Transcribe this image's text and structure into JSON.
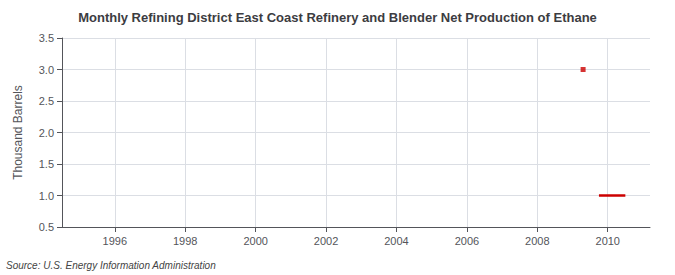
{
  "chart_data": {
    "type": "line",
    "title": "Monthly Refining District East Coast Refinery and Blender Net Production of Ethane",
    "ylabel": "Thousand Barrels",
    "annotation": "Source: U.S. Energy Information Administration",
    "xlim": [
      1994.5,
      2011.2
    ],
    "xticks": [
      1996,
      1998,
      2000,
      2002,
      2004,
      2006,
      2008,
      2010
    ],
    "ylim": [
      0.5,
      3.5
    ],
    "yticks": [
      0.5,
      {
        "value": 1,
        "label": "1.0"
      },
      1.5,
      {
        "value": 2,
        "label": "2.0"
      },
      2.5,
      {
        "value": 3,
        "label": "3.0"
      },
      3.5
    ],
    "grid": true,
    "series": [
      {
        "type": "scatter",
        "marker": "square",
        "color": "#cc0000",
        "x": [
          2009.3
        ],
        "values": [
          3.0
        ]
      },
      {
        "type": "line",
        "color": "#cc0000",
        "x": [
          2009.75,
          2010.5
        ],
        "values": [
          1.0,
          1.0
        ]
      }
    ]
  }
}
